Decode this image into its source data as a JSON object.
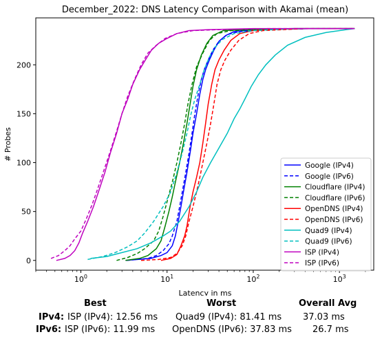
{
  "chart_data": {
    "type": "line",
    "title": "December_2022: DNS Latency Comparison with Akamai (mean)",
    "xlabel": "Latency in ms",
    "ylabel": "# Probes",
    "x_scale": "log",
    "xlim": [
      0.3,
      2500
    ],
    "ylim": [
      -10,
      248
    ],
    "x_ticks": [
      1,
      10,
      100,
      1000
    ],
    "x_tick_labels": [
      "10^0",
      "10^1",
      "10^2",
      "10^3"
    ],
    "y_ticks": [
      0,
      50,
      100,
      150,
      200
    ],
    "grid": false,
    "legend_position": "lower-right",
    "series": [
      {
        "name": "Google (IPv4)",
        "color": "#0000ff",
        "dash": "solid",
        "points": [
          [
            3.3,
            0
          ],
          [
            6.5,
            2
          ],
          [
            8.5,
            5
          ],
          [
            10,
            8
          ],
          [
            11.5,
            15
          ],
          [
            12.5,
            25
          ],
          [
            13.5,
            40
          ],
          [
            14.5,
            55
          ],
          [
            15.5,
            70
          ],
          [
            17,
            90
          ],
          [
            18.5,
            110
          ],
          [
            20,
            130
          ],
          [
            22,
            150
          ],
          [
            24,
            170
          ],
          [
            26,
            185
          ],
          [
            28,
            195
          ],
          [
            31,
            205
          ],
          [
            35,
            215
          ],
          [
            40,
            224
          ],
          [
            48,
            230
          ],
          [
            60,
            234
          ],
          [
            100,
            236
          ],
          [
            300,
            237
          ],
          [
            1500,
            237
          ]
        ]
      },
      {
        "name": "Google (IPv6)",
        "color": "#0000ff",
        "dash": "dashed",
        "points": [
          [
            3.4,
            0
          ],
          [
            6,
            2
          ],
          [
            7.5,
            5
          ],
          [
            9,
            10
          ],
          [
            10.5,
            17
          ],
          [
            11.5,
            25
          ],
          [
            13,
            40
          ],
          [
            14,
            55
          ],
          [
            15,
            70
          ],
          [
            16.5,
            90
          ],
          [
            18,
            110
          ],
          [
            19.5,
            130
          ],
          [
            21,
            150
          ],
          [
            23,
            170
          ],
          [
            25,
            185
          ],
          [
            27,
            195
          ],
          [
            30,
            205
          ],
          [
            34,
            215
          ],
          [
            40,
            224
          ],
          [
            50,
            231
          ],
          [
            70,
            234
          ],
          [
            150,
            236
          ],
          [
            500,
            237
          ],
          [
            1500,
            237
          ]
        ]
      },
      {
        "name": "Cloudflare (IPv4)",
        "color": "#008000",
        "dash": "solid",
        "points": [
          [
            3.3,
            0
          ],
          [
            4.8,
            2
          ],
          [
            6,
            5
          ],
          [
            7.5,
            12
          ],
          [
            8.5,
            20
          ],
          [
            9.5,
            35
          ],
          [
            10.5,
            50
          ],
          [
            11.5,
            65
          ],
          [
            12.5,
            80
          ],
          [
            14,
            100
          ],
          [
            15.5,
            120
          ],
          [
            17,
            140
          ],
          [
            18.5,
            160
          ],
          [
            20,
            178
          ],
          [
            22,
            195
          ],
          [
            25,
            210
          ],
          [
            29,
            222
          ],
          [
            34,
            230
          ],
          [
            45,
            235
          ],
          [
            80,
            236
          ],
          [
            300,
            237
          ],
          [
            1500,
            237
          ]
        ]
      },
      {
        "name": "Cloudflare (IPv6)",
        "color": "#008000",
        "dash": "dashed",
        "points": [
          [
            2.6,
            0
          ],
          [
            3.5,
            3
          ],
          [
            4.5,
            7
          ],
          [
            5.5,
            12
          ],
          [
            7,
            20
          ],
          [
            8,
            30
          ],
          [
            9,
            45
          ],
          [
            10,
            60
          ],
          [
            11.5,
            80
          ],
          [
            13,
            100
          ],
          [
            14.5,
            120
          ],
          [
            16,
            140
          ],
          [
            17.5,
            160
          ],
          [
            19.5,
            180
          ],
          [
            22,
            198
          ],
          [
            26,
            212
          ],
          [
            31,
            225
          ],
          [
            38,
            232
          ],
          [
            55,
            235
          ],
          [
            120,
            236
          ],
          [
            500,
            237
          ],
          [
            1500,
            237
          ]
        ]
      },
      {
        "name": "OpenDNS (IPv4)",
        "color": "#ff0000",
        "dash": "solid",
        "points": [
          [
            8.5,
            0
          ],
          [
            11,
            2
          ],
          [
            13,
            6
          ],
          [
            14.5,
            15
          ],
          [
            16,
            25
          ],
          [
            17,
            35
          ],
          [
            18.5,
            55
          ],
          [
            20,
            70
          ],
          [
            22,
            85
          ],
          [
            24,
            100
          ],
          [
            26,
            120
          ],
          [
            28,
            140
          ],
          [
            30,
            160
          ],
          [
            33,
            180
          ],
          [
            36,
            195
          ],
          [
            40,
            205
          ],
          [
            46,
            215
          ],
          [
            55,
            225
          ],
          [
            70,
            232
          ],
          [
            100,
            235
          ],
          [
            300,
            237
          ],
          [
            1500,
            237
          ]
        ]
      },
      {
        "name": "OpenDNS (IPv6)",
        "color": "#ff0000",
        "dash": "dashed",
        "points": [
          [
            5,
            0
          ],
          [
            8,
            1
          ],
          [
            11,
            3
          ],
          [
            13,
            7
          ],
          [
            15,
            15
          ],
          [
            16.5,
            25
          ],
          [
            18,
            40
          ],
          [
            20,
            55
          ],
          [
            22,
            70
          ],
          [
            24,
            85
          ],
          [
            26,
            100
          ],
          [
            29,
            120
          ],
          [
            32,
            140
          ],
          [
            35,
            160
          ],
          [
            38,
            180
          ],
          [
            42,
            195
          ],
          [
            47,
            205
          ],
          [
            55,
            215
          ],
          [
            68,
            225
          ],
          [
            90,
            232
          ],
          [
            130,
            235
          ],
          [
            400,
            237
          ],
          [
            1500,
            237
          ]
        ]
      },
      {
        "name": "Quad9 (IPv4)",
        "color": "#00bfbf",
        "dash": "solid",
        "points": [
          [
            1.3,
            2
          ],
          [
            2,
            4
          ],
          [
            3,
            8
          ],
          [
            4.5,
            12
          ],
          [
            6.5,
            18
          ],
          [
            9,
            25
          ],
          [
            11,
            30
          ],
          [
            14,
            40
          ],
          [
            18,
            55
          ],
          [
            22,
            70
          ],
          [
            26,
            85
          ],
          [
            32,
            100
          ],
          [
            40,
            115
          ],
          [
            50,
            130
          ],
          [
            60,
            145
          ],
          [
            70,
            155
          ],
          [
            80,
            165
          ],
          [
            95,
            178
          ],
          [
            115,
            190
          ],
          [
            140,
            200
          ],
          [
            180,
            210
          ],
          [
            250,
            220
          ],
          [
            400,
            228
          ],
          [
            700,
            233
          ],
          [
            1200,
            236
          ],
          [
            1500,
            237
          ]
        ]
      },
      {
        "name": "Quad9 (IPv6)",
        "color": "#00bfbf",
        "dash": "dashed",
        "points": [
          [
            1.2,
            1
          ],
          [
            1.8,
            4
          ],
          [
            2.5,
            8
          ],
          [
            3.5,
            14
          ],
          [
            4.5,
            20
          ],
          [
            5.5,
            28
          ],
          [
            7,
            40
          ],
          [
            9,
            55
          ],
          [
            11,
            70
          ],
          [
            13,
            90
          ],
          [
            15,
            110
          ],
          [
            17,
            130
          ],
          [
            19,
            150
          ],
          [
            21,
            165
          ],
          [
            24,
            180
          ],
          [
            27,
            195
          ],
          [
            31,
            208
          ],
          [
            36,
            218
          ],
          [
            44,
            226
          ],
          [
            60,
            232
          ],
          [
            100,
            235
          ],
          [
            300,
            237
          ],
          [
            1500,
            237
          ]
        ]
      },
      {
        "name": "ISP (IPv4)",
        "color": "#bf00bf",
        "dash": "solid",
        "points": [
          [
            0.52,
            0
          ],
          [
            0.65,
            2
          ],
          [
            0.75,
            5
          ],
          [
            0.85,
            10
          ],
          [
            0.95,
            18
          ],
          [
            1.05,
            28
          ],
          [
            1.2,
            40
          ],
          [
            1.4,
            55
          ],
          [
            1.6,
            70
          ],
          [
            1.9,
            90
          ],
          [
            2.2,
            110
          ],
          [
            2.6,
            130
          ],
          [
            3,
            150
          ],
          [
            3.5,
            165
          ],
          [
            4,
            180
          ],
          [
            4.8,
            195
          ],
          [
            5.6,
            205
          ],
          [
            6.6,
            215
          ],
          [
            8,
            222
          ],
          [
            10,
            227
          ],
          [
            13,
            232
          ],
          [
            18,
            235
          ],
          [
            30,
            236
          ],
          [
            100,
            237
          ],
          [
            1500,
            237
          ]
        ]
      },
      {
        "name": "ISP (IPv6)",
        "color": "#bf00bf",
        "dash": "dashed",
        "points": [
          [
            0.45,
            2
          ],
          [
            0.55,
            5
          ],
          [
            0.65,
            10
          ],
          [
            0.75,
            15
          ],
          [
            0.85,
            22
          ],
          [
            1,
            30
          ],
          [
            1.15,
            42
          ],
          [
            1.35,
            57
          ],
          [
            1.55,
            72
          ],
          [
            1.85,
            92
          ],
          [
            2.2,
            112
          ],
          [
            2.6,
            132
          ],
          [
            3,
            150
          ],
          [
            3.5,
            168
          ],
          [
            4.2,
            185
          ],
          [
            5,
            200
          ],
          [
            6,
            212
          ],
          [
            7.5,
            220
          ],
          [
            9.5,
            227
          ],
          [
            13,
            232
          ],
          [
            20,
            235
          ],
          [
            40,
            236
          ],
          [
            150,
            237
          ],
          [
            1500,
            237
          ]
        ]
      }
    ]
  },
  "summary": {
    "headers": {
      "best": "Best",
      "worst": "Worst",
      "overall": "Overall Avg"
    },
    "rows": [
      {
        "label": "IPv4:",
        "best": "ISP (IPv4): 12.56 ms",
        "worst": "Quad9 (IPv4): 81.41 ms",
        "overall": "37.03 ms"
      },
      {
        "label": "IPv6:",
        "best": "ISP (IPv6): 11.99 ms",
        "worst": "OpenDNS (IPv6): 37.83 ms",
        "overall": "26.7 ms"
      }
    ]
  }
}
